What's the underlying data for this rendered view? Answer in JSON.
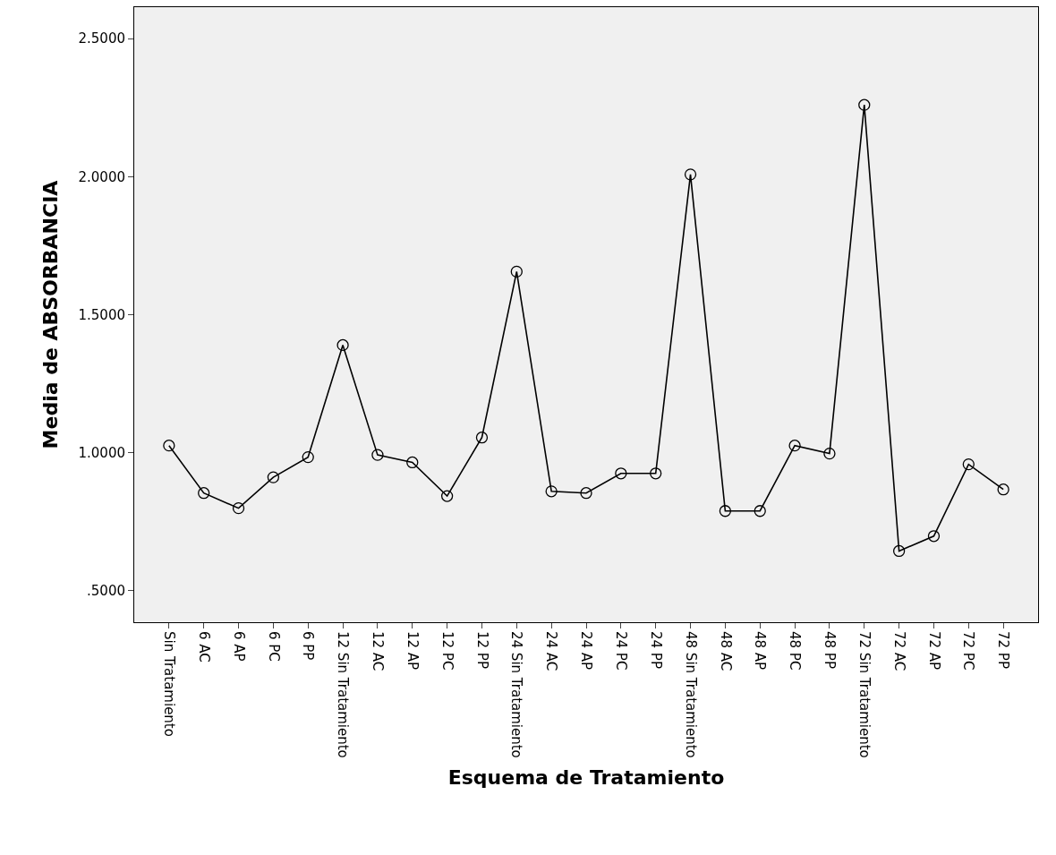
{
  "chart_data": {
    "type": "line",
    "xlabel": "Esquema de Tratamiento",
    "ylabel": "Media de ABSORBANCIA",
    "categories": [
      "Sin Tratamiento",
      "6 AC",
      "6 AP",
      "6 PC",
      "6 PP",
      "12 Sin Tratamiento",
      "12 AC",
      "12 AP",
      "12 PC",
      "12 PP",
      "24 Sin Tratamiento",
      "24 AC",
      "24 AP",
      "24 PC",
      "24 PP",
      "48 Sin Tratamiento",
      "48 AC",
      "48 AP",
      "48 PC",
      "48 PP",
      "72 Sin Tratamiento",
      "72 AC",
      "72 AP",
      "72 PC",
      "72 PP"
    ],
    "series": [
      {
        "color": "#000000",
        "values": [
          1.026,
          0.854,
          0.799,
          0.911,
          0.984,
          1.39,
          0.992,
          0.965,
          0.843,
          1.055,
          1.656,
          0.86,
          0.854,
          0.925,
          0.925,
          2.008,
          0.789,
          0.789,
          1.026,
          0.997,
          2.26,
          0.644,
          0.698,
          0.958,
          0.867
        ]
      }
    ],
    "ylim": [
      0.386,
      2.614
    ],
    "yticks": [
      {
        "value": 0.5,
        "label": ".5000"
      },
      {
        "value": 1.0,
        "label": "1.0000"
      },
      {
        "value": 1.5,
        "label": "1.5000"
      },
      {
        "value": 2.0,
        "label": "2.0000"
      },
      {
        "value": 2.5,
        "label": "2.5000"
      }
    ],
    "grid": false,
    "marker": "circle",
    "line_style": "solid"
  }
}
